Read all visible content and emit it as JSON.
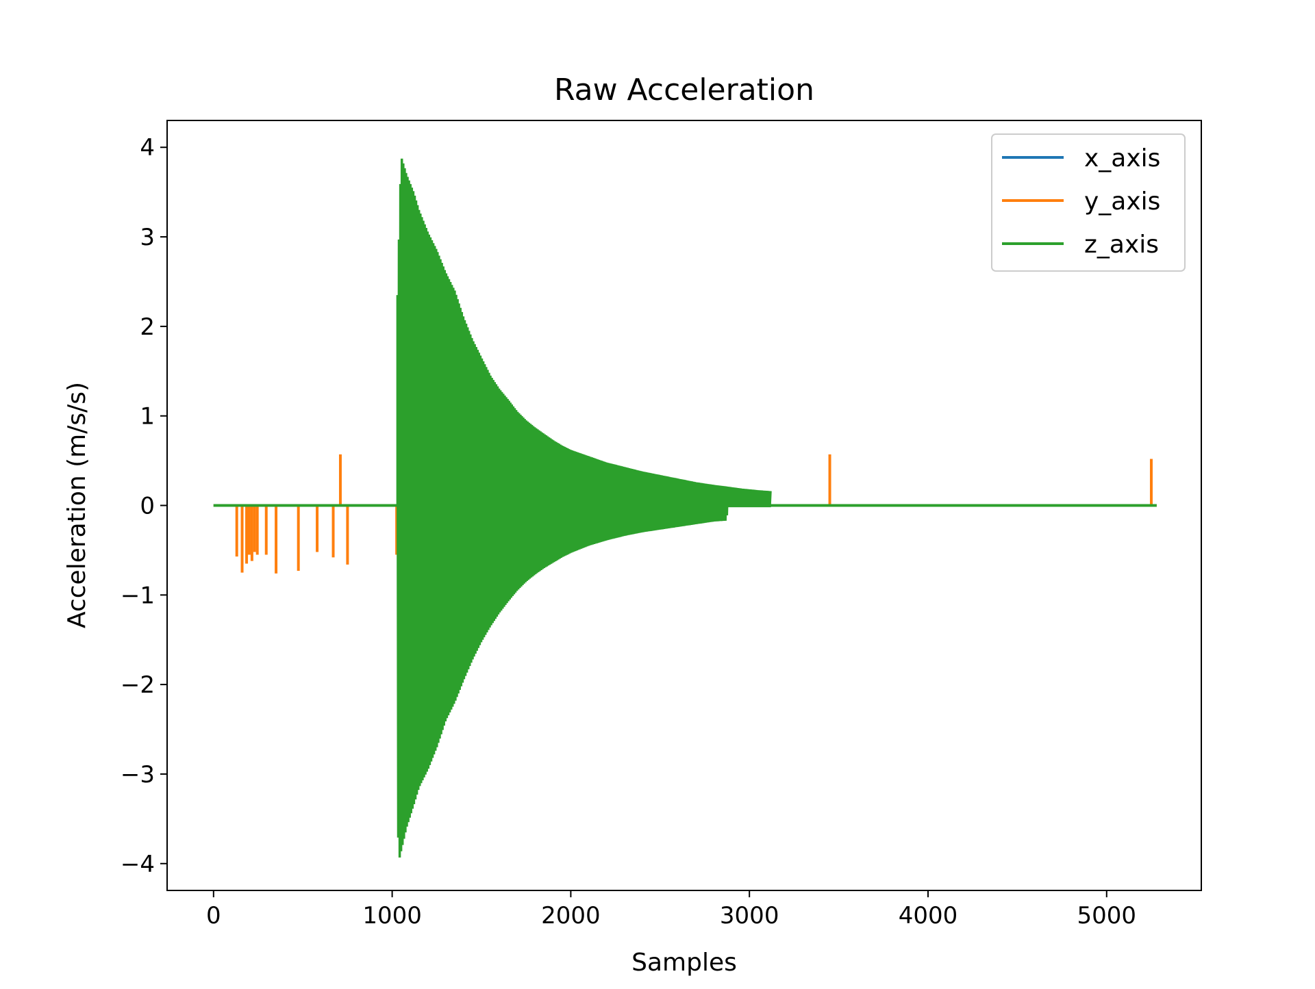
{
  "chart_data": {
    "type": "line",
    "title": "Raw Acceleration",
    "xlabel": "Samples",
    "ylabel": "Acceleration (m/s/s)",
    "xlim": [
      -260,
      5530
    ],
    "ylim": [
      -4.3,
      4.3
    ],
    "xticks": [
      0,
      1000,
      2000,
      3000,
      4000,
      5000
    ],
    "xtick_labels": [
      "0",
      "1000",
      "2000",
      "3000",
      "4000",
      "5000"
    ],
    "yticks": [
      -4,
      -3,
      -2,
      -1,
      0,
      1,
      2,
      3,
      4
    ],
    "ytick_labels": [
      "−4",
      "−3",
      "−2",
      "−1",
      "0",
      "1",
      "2",
      "3",
      "4"
    ],
    "grid": false,
    "legend_position": "top-right",
    "colors": {
      "x_axis": "#1f77b4",
      "y_axis": "#ff7f0e",
      "z_axis": "#2ca02c"
    },
    "series": [
      {
        "name": "x_axis",
        "color": "#1f77b4",
        "x_range": [
          0,
          5280
        ],
        "baseline": 0,
        "spikes": []
      },
      {
        "name": "y_axis",
        "color": "#ff7f0e",
        "x_range": [
          0,
          5280
        ],
        "baseline": 0,
        "spikes": [
          {
            "x": 130,
            "y": -0.57
          },
          {
            "x": 160,
            "y": -0.75
          },
          {
            "x": 185,
            "y": -0.65
          },
          {
            "x": 200,
            "y": -0.55
          },
          {
            "x": 215,
            "y": -0.62
          },
          {
            "x": 230,
            "y": -0.52
          },
          {
            "x": 245,
            "y": -0.55
          },
          {
            "x": 295,
            "y": -0.55
          },
          {
            "x": 350,
            "y": -0.76
          },
          {
            "x": 475,
            "y": -0.73
          },
          {
            "x": 580,
            "y": -0.52
          },
          {
            "x": 670,
            "y": -0.58
          },
          {
            "x": 710,
            "y": 0.57
          },
          {
            "x": 750,
            "y": -0.66
          },
          {
            "x": 1025,
            "y": -0.55
          },
          {
            "x": 3450,
            "y": 0.57
          },
          {
            "x": 5250,
            "y": 0.52
          }
        ]
      },
      {
        "name": "z_axis",
        "color": "#2ca02c",
        "x_range": [
          0,
          5280
        ],
        "baseline": 0,
        "burst": {
          "envelope": [
            {
              "x": 1030,
              "y": 2.35
            },
            {
              "x": 1050,
              "y": 3.9
            },
            {
              "x": 1080,
              "y": 3.7
            },
            {
              "x": 1120,
              "y": 3.5
            },
            {
              "x": 1150,
              "y": 3.3
            },
            {
              "x": 1200,
              "y": 3.05
            },
            {
              "x": 1250,
              "y": 2.85
            },
            {
              "x": 1300,
              "y": 2.6
            },
            {
              "x": 1350,
              "y": 2.4
            },
            {
              "x": 1400,
              "y": 2.1
            },
            {
              "x": 1450,
              "y": 1.85
            },
            {
              "x": 1500,
              "y": 1.65
            },
            {
              "x": 1550,
              "y": 1.45
            },
            {
              "x": 1600,
              "y": 1.3
            },
            {
              "x": 1650,
              "y": 1.18
            },
            {
              "x": 1700,
              "y": 1.05
            },
            {
              "x": 1750,
              "y": 0.95
            },
            {
              "x": 1800,
              "y": 0.87
            },
            {
              "x": 1850,
              "y": 0.8
            },
            {
              "x": 1900,
              "y": 0.73
            },
            {
              "x": 1950,
              "y": 0.67
            },
            {
              "x": 2000,
              "y": 0.62
            },
            {
              "x": 2100,
              "y": 0.55
            },
            {
              "x": 2200,
              "y": 0.48
            },
            {
              "x": 2300,
              "y": 0.43
            },
            {
              "x": 2400,
              "y": 0.38
            },
            {
              "x": 2500,
              "y": 0.34
            },
            {
              "x": 2600,
              "y": 0.3
            },
            {
              "x": 2700,
              "y": 0.26
            },
            {
              "x": 2800,
              "y": 0.23
            },
            {
              "x": 2880,
              "y": 0.21
            },
            {
              "x": 2950,
              "y": 0.19
            },
            {
              "x": 3050,
              "y": 0.17
            },
            {
              "x": 3120,
              "y": 0.16
            }
          ],
          "neg_envelope": [
            {
              "x": 1030,
              "y": -3.55
            },
            {
              "x": 1040,
              "y": -3.95
            },
            {
              "x": 1080,
              "y": -3.6
            },
            {
              "x": 1120,
              "y": -3.35
            },
            {
              "x": 1150,
              "y": -3.15
            },
            {
              "x": 1200,
              "y": -2.95
            },
            {
              "x": 1250,
              "y": -2.7
            },
            {
              "x": 1300,
              "y": -2.4
            },
            {
              "x": 1350,
              "y": -2.2
            },
            {
              "x": 1400,
              "y": -1.95
            },
            {
              "x": 1450,
              "y": -1.72
            },
            {
              "x": 1500,
              "y": -1.52
            },
            {
              "x": 1550,
              "y": -1.35
            },
            {
              "x": 1600,
              "y": -1.2
            },
            {
              "x": 1650,
              "y": -1.07
            },
            {
              "x": 1700,
              "y": -0.95
            },
            {
              "x": 1750,
              "y": -0.85
            },
            {
              "x": 1800,
              "y": -0.77
            },
            {
              "x": 1850,
              "y": -0.7
            },
            {
              "x": 1900,
              "y": -0.64
            },
            {
              "x": 1950,
              "y": -0.58
            },
            {
              "x": 2000,
              "y": -0.53
            },
            {
              "x": 2100,
              "y": -0.45
            },
            {
              "x": 2200,
              "y": -0.39
            },
            {
              "x": 2300,
              "y": -0.34
            },
            {
              "x": 2400,
              "y": -0.3
            },
            {
              "x": 2500,
              "y": -0.27
            },
            {
              "x": 2600,
              "y": -0.24
            },
            {
              "x": 2700,
              "y": -0.21
            },
            {
              "x": 2800,
              "y": -0.18
            },
            {
              "x": 2870,
              "y": -0.17
            },
            {
              "x": 2880,
              "y": -0.02
            },
            {
              "x": 3120,
              "y": -0.02
            }
          ]
        }
      }
    ]
  }
}
